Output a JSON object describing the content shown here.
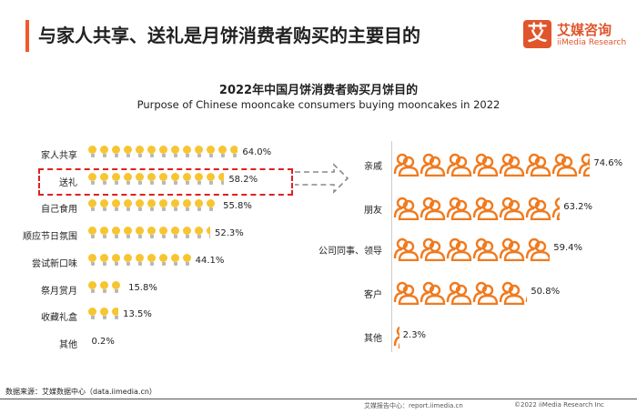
{
  "header": {
    "title": "与家人共享、送礼是月饼消费者购买的主要目的",
    "logo_mark": "艾",
    "logo_cn": "艾媒咨询",
    "logo_en": "iiMedia Research"
  },
  "chart_data": [
    {
      "type": "bar",
      "title": "2022年中国月饼消费者购买月饼目的",
      "subtitle": "Purpose of Chinese mooncake consumers buying mooncakes in 2022",
      "icon": "lightbulb-icon",
      "unit": "%",
      "highlight": "送礼",
      "categories": [
        "家人共享",
        "送礼",
        "自己食用",
        "顺应节日氛围",
        "尝试新口味",
        "祭月赏月",
        "收藏礼盒",
        "其他"
      ],
      "values": [
        64.0,
        58.2,
        55.8,
        52.3,
        44.1,
        15.8,
        13.5,
        0.2
      ],
      "labels": [
        "64.0%",
        "58.2%",
        "55.8%",
        "52.3%",
        "44.1%",
        "15.8%",
        "13.5%",
        "0.2%"
      ]
    },
    {
      "type": "bar",
      "icon": "people-icon",
      "unit": "%",
      "colors": {
        "icon": "#f07a1e"
      },
      "categories": [
        "亲戚",
        "朋友",
        "公司同事、领导",
        "客户",
        "其他"
      ],
      "values": [
        74.6,
        63.2,
        59.4,
        50.8,
        2.3
      ],
      "labels": [
        "74.6%",
        "63.2%",
        "59.4%",
        "50.8%",
        "2.3%"
      ]
    }
  ],
  "footer": {
    "source": "数据来源：艾媒数据中心（data.iimedia.cn）",
    "report": "艾媒报告中心：report.iimedia.cn",
    "copyright": "©2022  iiMedia Research  Inc"
  }
}
